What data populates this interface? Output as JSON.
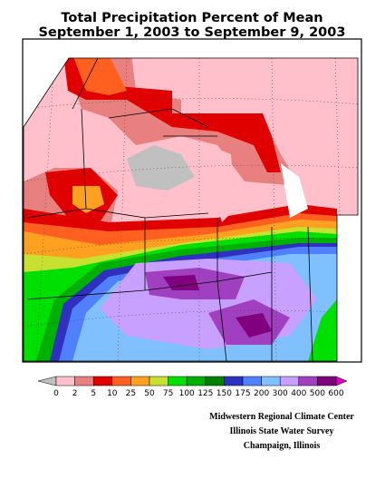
{
  "title": [
    "Total Precipitation Percent of Mean",
    "September 1, 2003 to September 9, 2003"
  ],
  "legend": {
    "labels": [
      "0",
      "2",
      "5",
      "10",
      "25",
      "50",
      "75",
      "100",
      "125",
      "150",
      "175",
      "200",
      "300",
      "400",
      "500",
      "600"
    ]
  },
  "credits": [
    "Midwestern Regional Climate Center",
    "Illinois State Water Survey",
    "Champaign, Illinois"
  ]
}
